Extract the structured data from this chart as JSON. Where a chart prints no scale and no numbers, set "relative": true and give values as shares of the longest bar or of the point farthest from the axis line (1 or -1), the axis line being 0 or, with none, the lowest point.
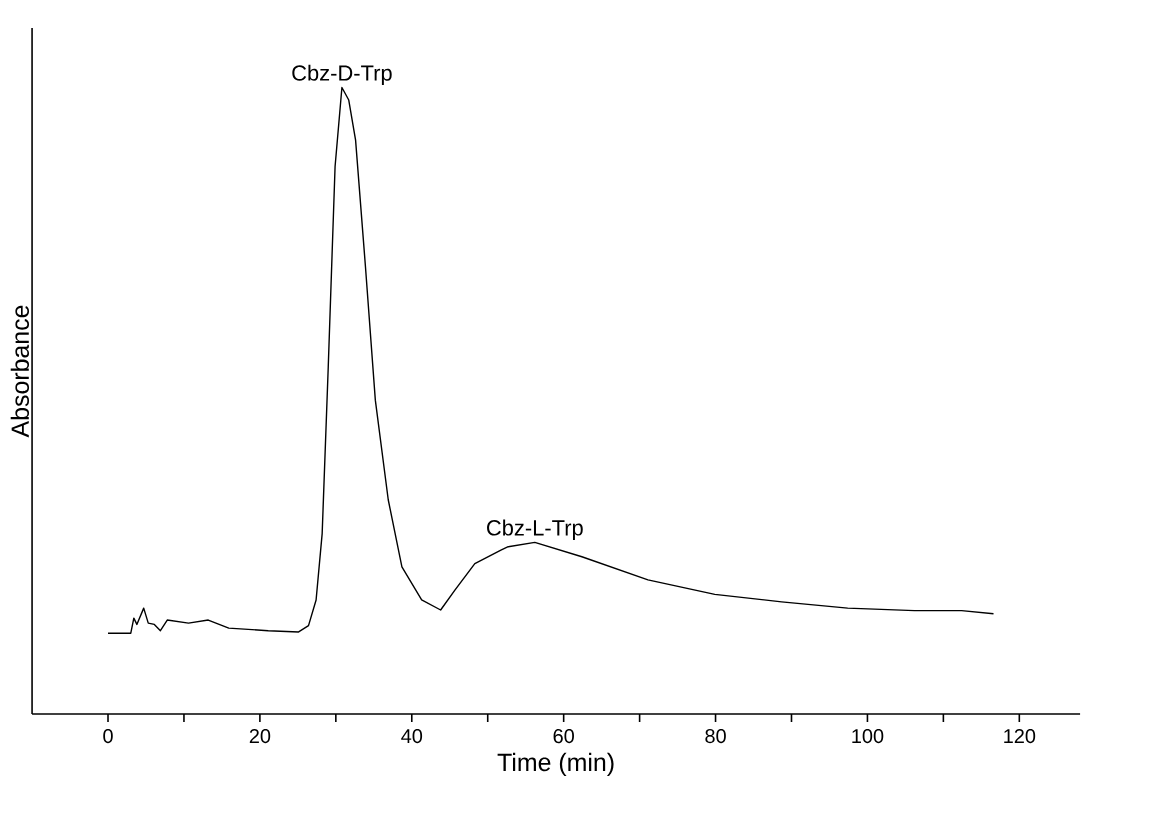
{
  "chart_data": {
    "type": "line",
    "xlabel": "Time (min)",
    "ylabel": "Absorbance",
    "relative": true,
    "color": "#000000",
    "marker": "none",
    "line_style": "solid",
    "xlim": [
      -10,
      128
    ],
    "xticks": [
      0,
      {
        "value": 10,
        "label": null
      },
      20,
      {
        "value": 30,
        "label": null
      },
      40,
      {
        "value": 50,
        "label": null
      },
      60,
      {
        "value": 70,
        "label": null
      },
      80,
      {
        "value": 90,
        "label": null
      },
      100,
      {
        "value": 110,
        "label": null
      },
      120
    ],
    "annotations": [
      {
        "text": "Cbz-D-Trp",
        "x": 30.8,
        "y": 1.0
      },
      {
        "text": "Cbz-L-Trp",
        "x": 56.2,
        "y": 0.274
      }
    ],
    "x": [
      0,
      3.0,
      3.4,
      3.8,
      4.7,
      5.3,
      6.1,
      6.9,
      7.8,
      10.6,
      13.2,
      15.9,
      21.1,
      25.1,
      26.4,
      27.4,
      28.2,
      29.0,
      29.9,
      30.8,
      31.7,
      32.6,
      33.9,
      35.2,
      36.9,
      38.7,
      41.3,
      43.8,
      45.7,
      48.3,
      51.8,
      52.7,
      56.2,
      62.4,
      71.1,
      79.9,
      88.7,
      97.4,
      106.2,
      112.4,
      116.6
    ],
    "values": [
      0.129,
      0.129,
      0.153,
      0.143,
      0.169,
      0.145,
      0.143,
      0.133,
      0.15,
      0.145,
      0.15,
      0.137,
      0.133,
      0.131,
      0.141,
      0.182,
      0.288,
      0.554,
      0.874,
      1.0,
      0.98,
      0.916,
      0.714,
      0.501,
      0.342,
      0.235,
      0.182,
      0.166,
      0.198,
      0.24,
      0.262,
      0.267,
      0.274,
      0.251,
      0.214,
      0.191,
      0.179,
      0.169,
      0.165,
      0.165,
      0.16
    ]
  }
}
